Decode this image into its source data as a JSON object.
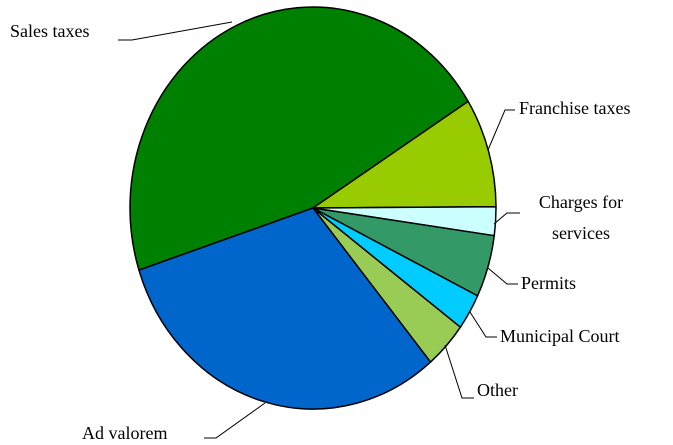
{
  "chart_data": {
    "type": "pie",
    "categories": [
      "Sales taxes",
      "Franchise taxes",
      "Charges for services",
      "Permits",
      "Municipal Court",
      "Other",
      "Ad valorem"
    ],
    "values": [
      46.1,
      8.8,
      2.3,
      5.0,
      2.9,
      3.8,
      31.1
    ],
    "colors": [
      "#008000",
      "#99cc00",
      "#ccffff",
      "#339966",
      "#00ccff",
      "#99cc55",
      "#0066cc"
    ]
  }
}
